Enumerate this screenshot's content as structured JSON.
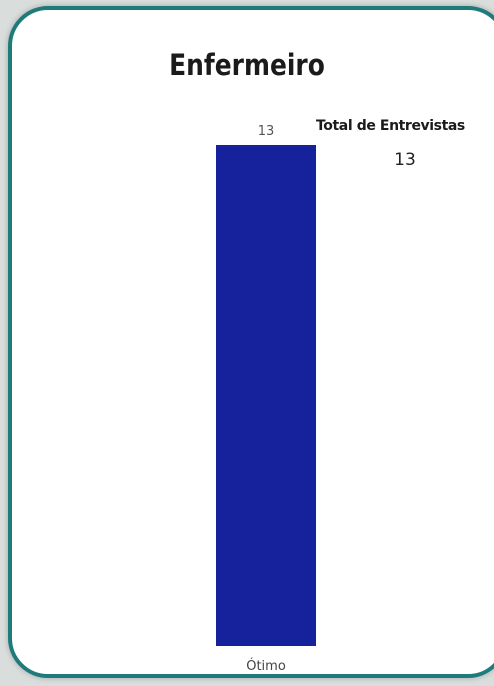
{
  "card": {
    "title": "Enfermeiro",
    "border_color": "#1f7a7a"
  },
  "kpi": {
    "label": "Total de Entrevistas",
    "value": "13"
  },
  "chart_data": {
    "type": "bar",
    "categories": [
      "Ótimo"
    ],
    "values": [
      13
    ],
    "data_labels": [
      "13"
    ],
    "title": "Enfermeiro",
    "xlabel": "",
    "ylabel": "",
    "ylim": [
      0,
      13
    ],
    "grid": false,
    "bar_color": "#16229b"
  }
}
